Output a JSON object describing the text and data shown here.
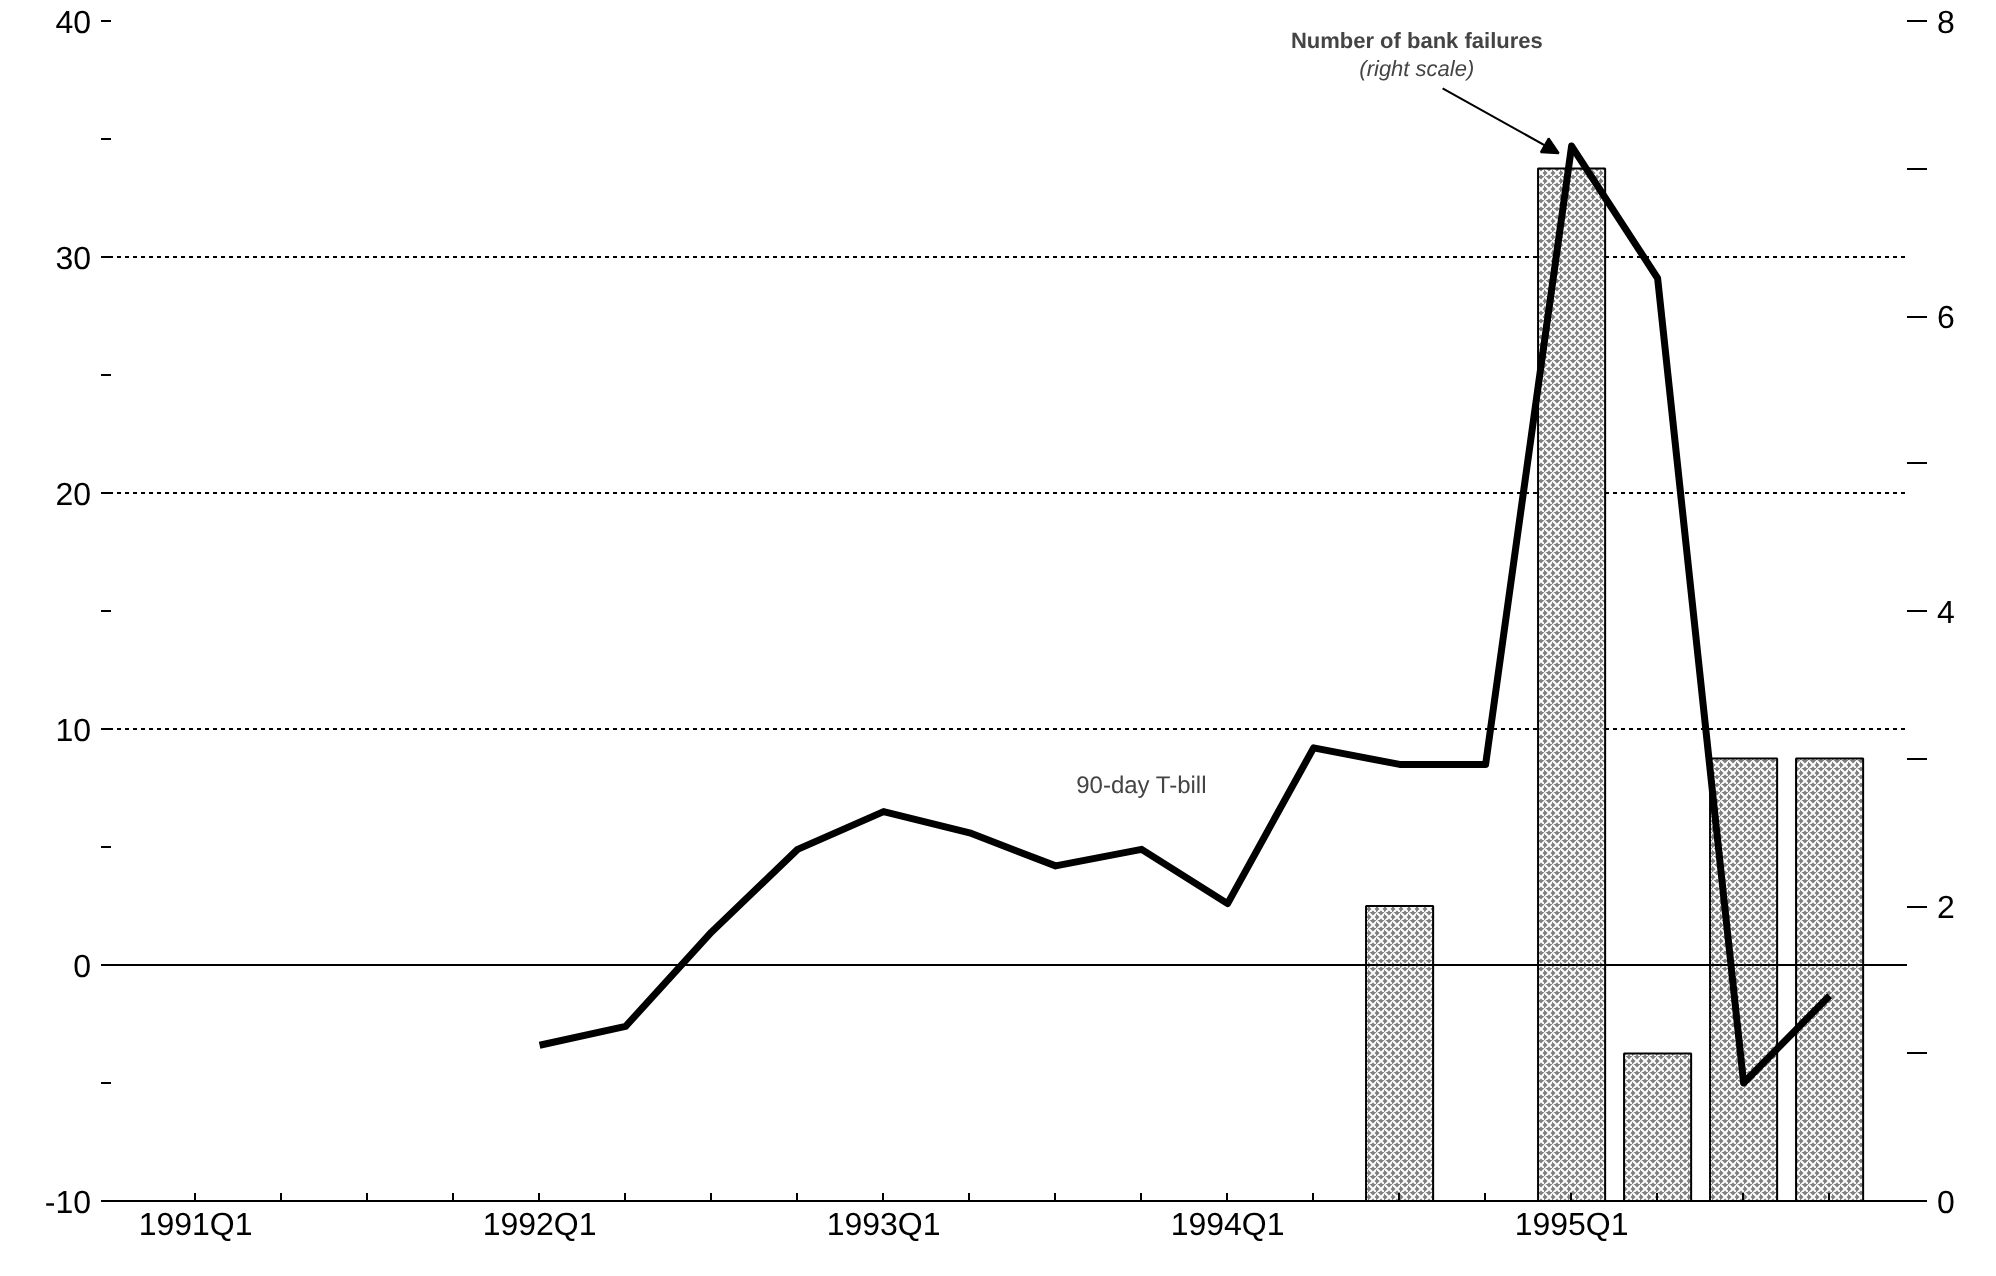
{
  "chart_data": {
    "type": "line",
    "categories": [
      "1991Q1",
      null,
      null,
      null,
      "1992Q1",
      null,
      null,
      null,
      "1993Q1",
      null,
      null,
      null,
      "1994Q1",
      null,
      null,
      null,
      "1995Q1",
      null,
      null,
      null
    ],
    "series": [
      {
        "type": "bar",
        "axis": "y2",
        "color": "#808080",
        "values": [
          null,
          null,
          null,
          null,
          null,
          null,
          null,
          null,
          null,
          null,
          null,
          null,
          null,
          null,
          2,
          null,
          7,
          1,
          3,
          3
        ]
      },
      {
        "name": "90-day T-bill",
        "color": "#000000",
        "values": [
          null,
          null,
          null,
          null,
          -3.4,
          -2.6,
          1.4,
          4.9,
          6.5,
          5.6,
          4.2,
          4.9,
          2.6,
          9.2,
          8.5,
          8.5,
          34.7,
          29.1,
          -5.0,
          -1.3
        ]
      }
    ],
    "ylim": [
      -10,
      40
    ],
    "yticks": [
      -10,
      {
        "value": -5,
        "label": null
      },
      0,
      {
        "value": 5,
        "label": null
      },
      10,
      {
        "value": 15,
        "label": null
      },
      20,
      {
        "value": 25,
        "label": null
      },
      30,
      {
        "value": 35,
        "label": null
      },
      40
    ],
    "y2lim": [
      0,
      8
    ],
    "y2ticks": [
      0,
      {
        "value": 1,
        "label": null
      },
      2,
      {
        "value": 3,
        "label": null
      },
      4,
      {
        "value": 5,
        "label": null
      },
      6,
      {
        "value": 7,
        "label": null
      },
      8
    ],
    "ref_lines": [
      {
        "axis": "y",
        "value": 0,
        "color": "#000000",
        "line_style": "solid"
      }
    ],
    "annotations": [
      "Number of bank failures",
      {
        "text": "(right scale)",
        "x": "1995Q1",
        "y": 34.4
      }
    ],
    "grid": "y",
    "line_style": "solid",
    "marker": "none"
  }
}
